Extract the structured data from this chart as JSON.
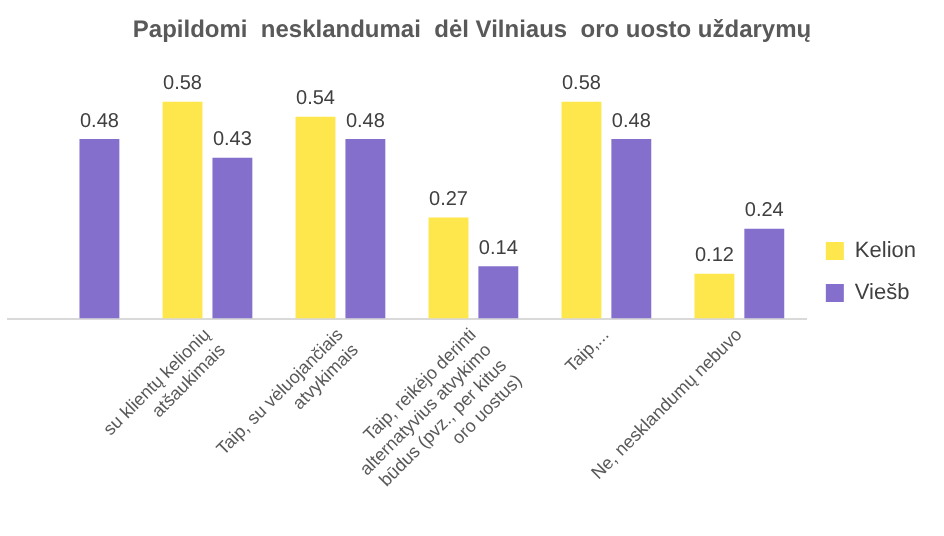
{
  "chart_data": {
    "type": "bar",
    "title": "Papildomi  nesklandumai  dėl Vilniaus  oro uosto uždarymų",
    "categories": [
      null,
      "su klientų kelionių atšaukimais",
      "Taip, su vėluojančiais atvykimais",
      "Taip, reikėjo derinti alternatyvius atvykimo būdus (pvz., per kitus oro uostus)",
      "Taip,...",
      "Ne, nesklandumų nebuvo"
    ],
    "series": [
      {
        "name": "Kelion",
        "color": "#fde74c",
        "values": [
          null,
          0.58,
          0.54,
          0.27,
          0.58,
          0.12
        ]
      },
      {
        "name": "Viešb",
        "color": "#8470cc",
        "values": [
          0.48,
          0.43,
          0.48,
          0.14,
          0.48,
          0.24
        ]
      }
    ],
    "data_labels": true,
    "legend": "right",
    "grid": false,
    "tick_labels": "x"
  }
}
